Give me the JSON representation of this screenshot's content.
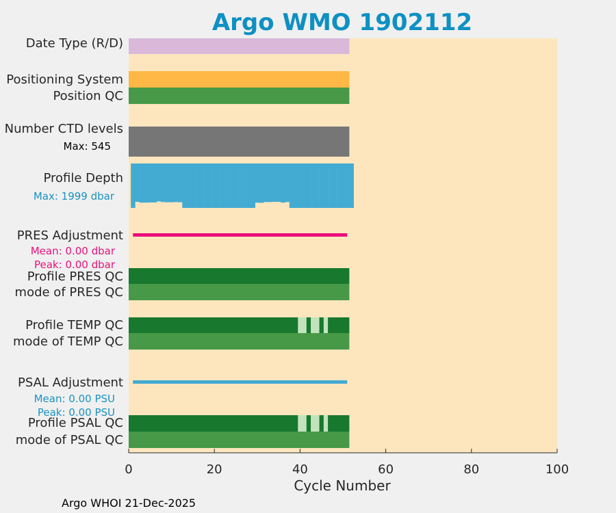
{
  "chart_data": {
    "type": "bar",
    "title": "Argo WMO 1902112",
    "xlabel": "Cycle Number",
    "xlim": [
      0,
      100
    ],
    "xticks": [
      0,
      20,
      40,
      60,
      80,
      100
    ],
    "last_cycle": 51.5,
    "footer": "Argo WHOI 21-Dec-2025",
    "rows": [
      {
        "key": "date_type",
        "label": "Date Type (R/D)",
        "color": "#d9b8da"
      },
      {
        "key": "positioning",
        "label": "Positioning System",
        "color": "#ffb845"
      },
      {
        "key": "position_qc",
        "label": "Position QC",
        "color": "#479947"
      },
      {
        "key": "ctd_levels",
        "label": "Number CTD levels",
        "color": "#767676",
        "note": "Max: 545",
        "note_color": "#000000"
      },
      {
        "key": "profile_depth",
        "label": "Profile Depth",
        "color": "#43abd2",
        "note": "Max: 1999 dbar",
        "note_color": "#1a92c0",
        "depth_max": 1999,
        "depth_values": [
          1999,
          1900,
          1940,
          1940,
          1930,
          1930,
          1880,
          1910,
          1920,
          1920,
          1910,
          1920,
          1999,
          1999,
          1999,
          1999,
          1999,
          1999,
          1999,
          1999,
          1999,
          1999,
          1999,
          1999,
          1999,
          1999,
          1999,
          1999,
          1999,
          1940,
          1950,
          1910,
          1910,
          1900,
          1900,
          1940,
          1910,
          1999,
          1999,
          1999,
          1999,
          1999,
          1999,
          1999,
          1999,
          1999,
          1999,
          1999,
          1999,
          1999,
          1999,
          1999
        ]
      },
      {
        "key": "pres_adj",
        "label": "PRES Adjustment",
        "color": "#eb0e7d",
        "note1": "Mean: 0.00 dbar",
        "note2": "Peak: 0.00 dbar",
        "note_color": "#e8117a"
      },
      {
        "key": "profile_pres_qc",
        "label": "Profile PRES QC",
        "color": "#17782e"
      },
      {
        "key": "mode_pres_qc",
        "label": "mode of PRES QC",
        "color": "#479947"
      },
      {
        "key": "profile_temp_qc",
        "label": "Profile TEMP QC",
        "color": "#17782e",
        "light_cycles": [
          [
            39.5,
            41.5
          ],
          [
            42.5,
            44.5
          ],
          [
            45.5,
            46.5
          ]
        ],
        "light_color": "#c3e3bd"
      },
      {
        "key": "mode_temp_qc",
        "label": "mode of TEMP QC",
        "color": "#479947"
      },
      {
        "key": "psal_adj",
        "label": "PSAL Adjustment",
        "color": "#43abd2",
        "note1": "Mean: 0.00 PSU",
        "note2": "Peak: 0.00 PSU",
        "note_color": "#1a92c0"
      },
      {
        "key": "profile_psal_qc",
        "label": "Profile PSAL QC",
        "color": "#17782e",
        "light_cycles": [
          [
            39.5,
            41.5
          ],
          [
            42.5,
            44.5
          ],
          [
            45.5,
            46.5
          ]
        ],
        "light_color": "#c3e3bd"
      },
      {
        "key": "mode_psal_qc",
        "label": "mode of PSAL QC",
        "color": "#479947"
      }
    ]
  }
}
